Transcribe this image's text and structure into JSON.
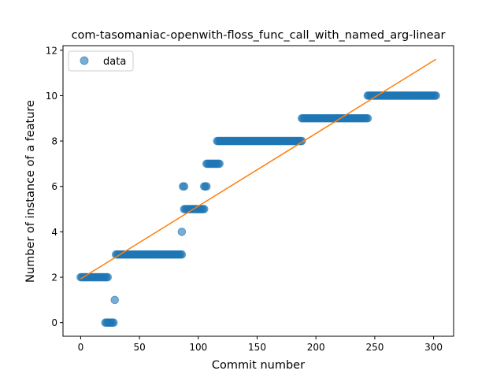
{
  "chart_data": {
    "type": "scatter",
    "title": "com-tasomaniac-openwith-floss_func_call_with_named_arg-linear",
    "xlabel": "Commit number",
    "ylabel": "Number of instance of a feature",
    "xlim": [
      -15,
      317
    ],
    "ylim": [
      -0.6,
      12.2
    ],
    "xticks": [
      0,
      50,
      100,
      150,
      200,
      250,
      300
    ],
    "yticks": [
      0,
      2,
      4,
      6,
      8,
      10,
      12
    ],
    "grid": false,
    "legend": {
      "placement": "upper-left",
      "entries": [
        "data"
      ]
    },
    "colors": {
      "data": "#1f77b4",
      "fit": "#ff7f0e"
    },
    "series": [
      {
        "name": "data",
        "kind": "points",
        "runs": [
          {
            "x_start": 0,
            "x_end": 23,
            "y": 2
          },
          {
            "x_start": 21,
            "x_end": 28,
            "y": 0
          },
          {
            "x_start": 29,
            "x_end": 29,
            "y": 1
          },
          {
            "x_start": 30,
            "x_end": 86,
            "y": 3
          },
          {
            "x_start": 86,
            "x_end": 86,
            "y": 4
          },
          {
            "x_start": 87,
            "x_end": 88,
            "y": 6
          },
          {
            "x_start": 88,
            "x_end": 105,
            "y": 5
          },
          {
            "x_start": 105,
            "x_end": 107,
            "y": 6
          },
          {
            "x_start": 107,
            "x_end": 118,
            "y": 7
          },
          {
            "x_start": 116,
            "x_end": 188,
            "y": 8
          },
          {
            "x_start": 188,
            "x_end": 244,
            "y": 9
          },
          {
            "x_start": 244,
            "x_end": 302,
            "y": 10
          }
        ]
      },
      {
        "kind": "line",
        "x": [
          0,
          302
        ],
        "y": [
          1.93,
          11.6
        ]
      }
    ]
  }
}
